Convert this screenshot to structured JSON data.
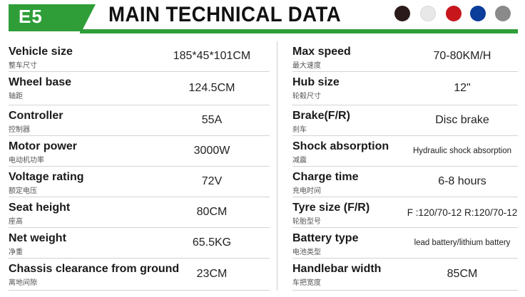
{
  "header": {
    "model": "E5",
    "title": "MAIN TECHNICAL DATA",
    "colors": [
      "#2a1a1a",
      "#e8e8e8",
      "#c8161d",
      "#0b3d9a",
      "#8a8a8a"
    ]
  },
  "specs": {
    "left": [
      {
        "label": "Vehicle size",
        "sub": "整车尺寸",
        "value": "185*45*101CM"
      },
      {
        "label": "Wheel base",
        "sub": "轴距",
        "value": "124.5CM"
      },
      {
        "label": "Controller",
        "sub": "控制器",
        "value": "55A"
      },
      {
        "label": "Motor power",
        "sub": "电动机功率",
        "value": "3000W"
      },
      {
        "label": "Voltage rating",
        "sub": "额定电压",
        "value": "72V"
      },
      {
        "label": "Seat height",
        "sub": "座高",
        "value": "80CM"
      },
      {
        "label": "Net weight",
        "sub": "净重",
        "value": "65.5KG"
      },
      {
        "label": "Chassis clearance from ground",
        "sub": "离地间隙",
        "value": "23CM"
      }
    ],
    "right": [
      {
        "label": "Max speed",
        "sub": "最大速度",
        "value": "70-80KM/H"
      },
      {
        "label": "Hub size",
        "sub": "轮毂尺寸",
        "value": "12\""
      },
      {
        "label": "Brake(F/R)",
        "sub": "刹车",
        "value": "Disc brake"
      },
      {
        "label": "Shock absorption",
        "sub": "减震",
        "value": "Hydraulic shock absorption"
      },
      {
        "label": "Charge time",
        "sub": "充电时间",
        "value": "6-8 hours"
      },
      {
        "label": "Tyre size (F/R)",
        "sub": "轮胎型号",
        "value": "F :120/70-12 R:120/70-12"
      },
      {
        "label": "Battery type",
        "sub": "电池类型",
        "value": "lead battery/lithium battery"
      },
      {
        "label": "Handlebar width",
        "sub": "车把宽度",
        "value": "85CM"
      }
    ]
  }
}
